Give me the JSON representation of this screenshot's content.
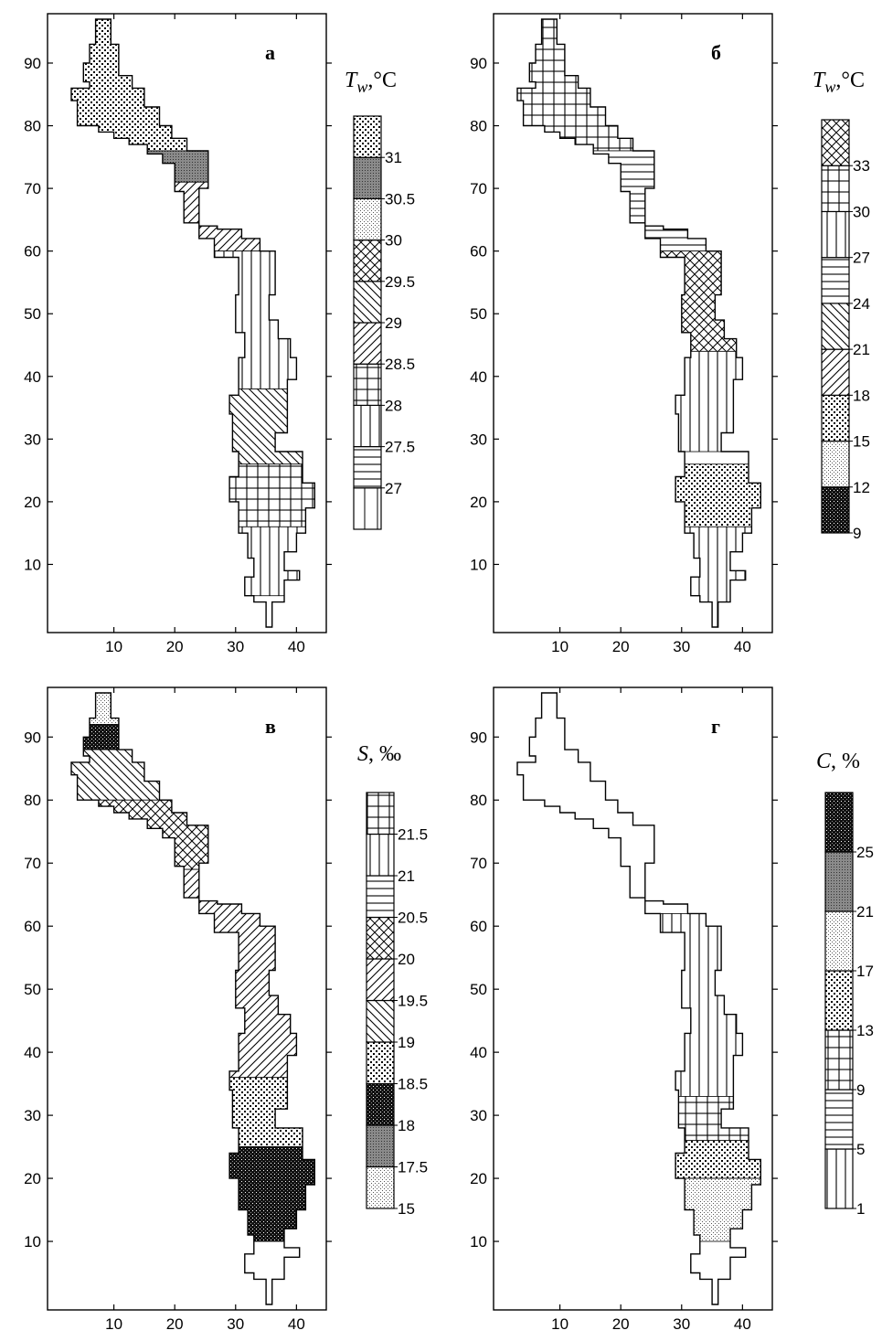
{
  "panels": [
    {
      "id": "a",
      "letter": "а",
      "legend_title": "T_w,°C",
      "legend_title_main": "T",
      "legend_title_sub": "w",
      "legend_title_unit": ",°C",
      "legend": [
        {
          "label": "",
          "pattern": "vert"
        },
        {
          "label": "27",
          "pattern": "hlines"
        },
        {
          "label": "27.5",
          "pattern": "vlines"
        },
        {
          "label": "28",
          "pattern": "grid"
        },
        {
          "label": "28.5",
          "pattern": "diag-up"
        },
        {
          "label": "29",
          "pattern": "diag-down"
        },
        {
          "label": "29.5",
          "pattern": "crosshatch"
        },
        {
          "label": "30",
          "pattern": "fine-dots"
        },
        {
          "label": "30.5",
          "pattern": "dark-dots"
        },
        {
          "label": "31",
          "pattern": "coarse-dots"
        }
      ]
    },
    {
      "id": "b",
      "letter": "б",
      "legend_title": "T_w,°C",
      "legend_title_main": "T",
      "legend_title_sub": "w",
      "legend_title_unit": ",°C",
      "legend": [
        {
          "label": "9",
          "pattern": "very-dark"
        },
        {
          "label": "12",
          "pattern": "fine-dots"
        },
        {
          "label": "15",
          "pattern": "coarse-dots"
        },
        {
          "label": "18",
          "pattern": "diag-up"
        },
        {
          "label": "21",
          "pattern": "diag-down"
        },
        {
          "label": "24",
          "pattern": "hlines"
        },
        {
          "label": "27",
          "pattern": "vlines"
        },
        {
          "label": "30",
          "pattern": "grid"
        },
        {
          "label": "33",
          "pattern": "crosshatch"
        }
      ]
    },
    {
      "id": "c",
      "letter": "в",
      "legend_title": "S, ‰",
      "legend_title_main": "S",
      "legend_title_sub": "",
      "legend_title_unit": ", ‰",
      "legend": [
        {
          "label": "15",
          "pattern": "fine-dots"
        },
        {
          "label": "17.5",
          "pattern": "dark-dots"
        },
        {
          "label": "18",
          "pattern": "very-dark"
        },
        {
          "label": "18.5",
          "pattern": "coarse-dots"
        },
        {
          "label": "19",
          "pattern": "diag-down"
        },
        {
          "label": "19.5",
          "pattern": "diag-up"
        },
        {
          "label": "20",
          "pattern": "crosshatch"
        },
        {
          "label": "20.5",
          "pattern": "hlines"
        },
        {
          "label": "21",
          "pattern": "vlines"
        },
        {
          "label": "21.5",
          "pattern": "grid"
        }
      ]
    },
    {
      "id": "d",
      "letter": "г",
      "legend_title": "C, %",
      "legend_title_main": "C",
      "legend_title_sub": "",
      "legend_title_unit": ", %",
      "legend": [
        {
          "label": "1",
          "pattern": "vlines"
        },
        {
          "label": "5",
          "pattern": "hlines"
        },
        {
          "label": "9",
          "pattern": "grid"
        },
        {
          "label": "13",
          "pattern": "coarse-dots"
        },
        {
          "label": "17",
          "pattern": "fine-dots"
        },
        {
          "label": "21",
          "pattern": "dark-dots"
        },
        {
          "label": "25",
          "pattern": "very-dark"
        }
      ]
    }
  ],
  "x_ticks": [
    "10",
    "20",
    "30",
    "40"
  ],
  "y_ticks": [
    "10",
    "20",
    "30",
    "40",
    "50",
    "60",
    "70",
    "80",
    "90"
  ],
  "axes": {
    "x_range": [
      0,
      44
    ],
    "y_range": [
      0,
      97
    ]
  }
}
